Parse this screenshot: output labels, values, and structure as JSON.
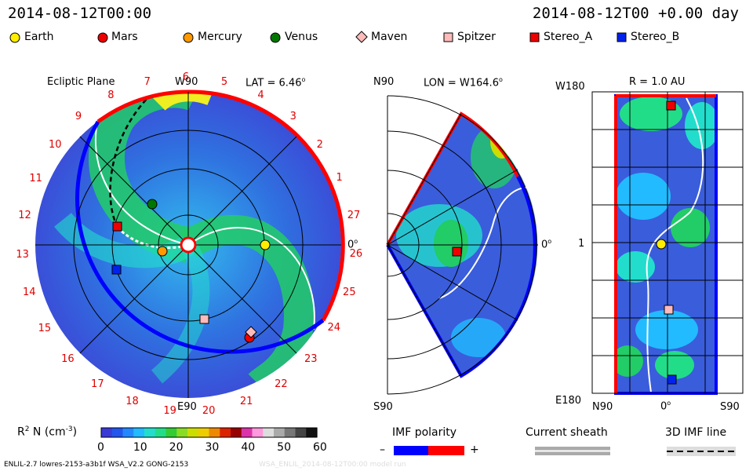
{
  "header": {
    "left_time": "2014-08-12T00:00",
    "right_time": "2014-08-12T00 +0.00 day"
  },
  "legend": [
    {
      "label": "Earth",
      "marker": "circle",
      "color": "#ffee00"
    },
    {
      "label": "Mars",
      "marker": "circle",
      "color": "#ee0000"
    },
    {
      "label": "Mercury",
      "marker": "circle",
      "color": "#ff9900"
    },
    {
      "label": "Venus",
      "marker": "circle",
      "color": "#007700"
    },
    {
      "label": "Maven",
      "marker": "diamond",
      "color": "#ffbbbb"
    },
    {
      "label": "Spitzer",
      "marker": "square",
      "color": "#ffbbbb"
    },
    {
      "label": "Stereo_A",
      "marker": "square",
      "color": "#ee0000"
    },
    {
      "label": "Stereo_B",
      "marker": "square",
      "color": "#0022ee"
    }
  ],
  "ecliptic": {
    "title": "Ecliptic Plane",
    "lat_label": "LAT = 6.46",
    "lat_degree": "o",
    "top": "W90",
    "bottom": "E90",
    "right": "0",
    "right_degree": "o",
    "carrington": [
      "1",
      "2",
      "3",
      "4",
      "5",
      "6",
      "7",
      "8",
      "9",
      "10",
      "11",
      "12",
      "13",
      "14",
      "15",
      "16",
      "17",
      "18",
      "19",
      "20",
      "21",
      "22",
      "23",
      "24",
      "25",
      "26",
      "27"
    ]
  },
  "meridional": {
    "n_label": "N90",
    "s_label": "S90",
    "lon_label": "LON = W164.6",
    "lon_degree": "o",
    "right": "0",
    "right_degree": "o"
  },
  "radial": {
    "r_label": "R = 1.0 AU",
    "w180": "W180",
    "e180": "E180",
    "one": "1",
    "n90": "N90",
    "zero": "0",
    "zero_degree": "o",
    "s90": "S90"
  },
  "colorbar": {
    "label": "R",
    "label_sup": "2",
    "label_rest": " N (cm",
    "label_exp": "-3",
    "label_end": ")",
    "ticks": [
      "0",
      "10",
      "20",
      "30",
      "40",
      "50",
      "60"
    ],
    "colors": [
      "#3a3ad6",
      "#2255ee",
      "#2288ff",
      "#22bbff",
      "#22ddcc",
      "#22dd88",
      "#33cc33",
      "#88dd22",
      "#ccdd00",
      "#eecc00",
      "#ee8800",
      "#dd2200",
      "#990000",
      "#dd33aa",
      "#ff99dd",
      "#dddddd",
      "#aaaaaa",
      "#777777",
      "#444444",
      "#111111"
    ]
  },
  "imf": {
    "title": "IMF polarity",
    "minus": "–",
    "plus": "+",
    "neg_color": "#0000ff",
    "pos_color": "#ff0000"
  },
  "sheath": {
    "title": "Current sheath"
  },
  "imf3d": {
    "title": "3D IMF line"
  },
  "footer": {
    "left": "ENLIL-2.7 lowres-2153-a3b1f WSA_V2.2 GONG-2153",
    "right": "WSA_ENLIL_2014-08-12T00:00 model run"
  }
}
